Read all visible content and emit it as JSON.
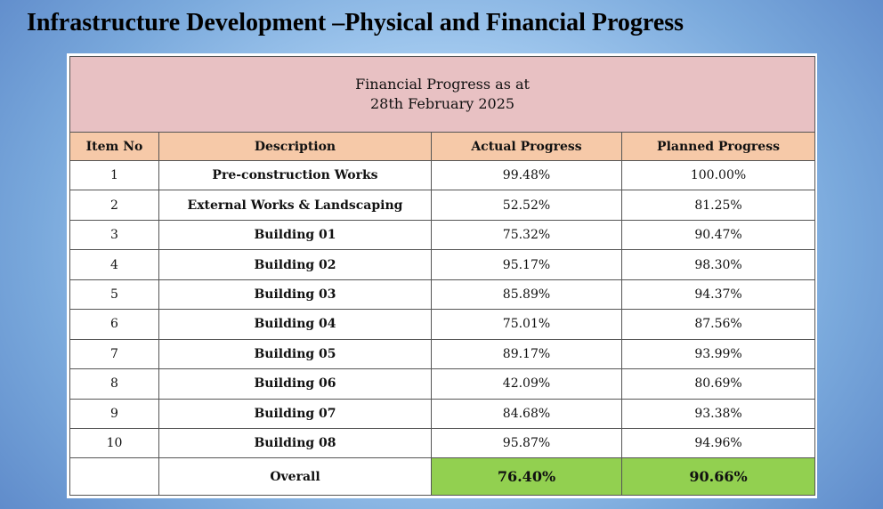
{
  "slide": {
    "title": "Infrastructure Development –Physical and Financial Progress"
  },
  "table": {
    "caption_line1": "Financial Progress as at",
    "caption_line2": "28th February 2025",
    "headers": {
      "item_no": "Item No",
      "description": "Description",
      "actual": "Actual Progress",
      "planned": "Planned Progress"
    },
    "rows": [
      {
        "item": "1",
        "description": "Pre-construction Works",
        "actual": "99.48%",
        "planned": "100.00%"
      },
      {
        "item": "2",
        "description": "External Works & Landscaping",
        "actual": "52.52%",
        "planned": "81.25%"
      },
      {
        "item": "3",
        "description": "Building 01",
        "actual": "75.32%",
        "planned": "90.47%"
      },
      {
        "item": "4",
        "description": "Building 02",
        "actual": "95.17%",
        "planned": "98.30%"
      },
      {
        "item": "5",
        "description": "Building 03",
        "actual": "85.89%",
        "planned": "94.37%"
      },
      {
        "item": "6",
        "description": "Building 04",
        "actual": "75.01%",
        "planned": "87.56%"
      },
      {
        "item": "7",
        "description": "Building 05",
        "actual": "89.17%",
        "planned": "93.99%"
      },
      {
        "item": "8",
        "description": "Building 06",
        "actual": "42.09%",
        "planned": "80.69%"
      },
      {
        "item": "9",
        "description": "Building 07",
        "actual": "84.68%",
        "planned": "93.38%"
      },
      {
        "item": "10",
        "description": "Building 08",
        "actual": "95.87%",
        "planned": "94.96%"
      }
    ],
    "overall": {
      "item": "",
      "description": "Overall",
      "actual": "76.40%",
      "planned": "90.66%"
    }
  },
  "colors": {
    "caption_bg": "#e8c1c3",
    "header_bg": "#f6c9a8",
    "overall_highlight": "#92d050"
  }
}
